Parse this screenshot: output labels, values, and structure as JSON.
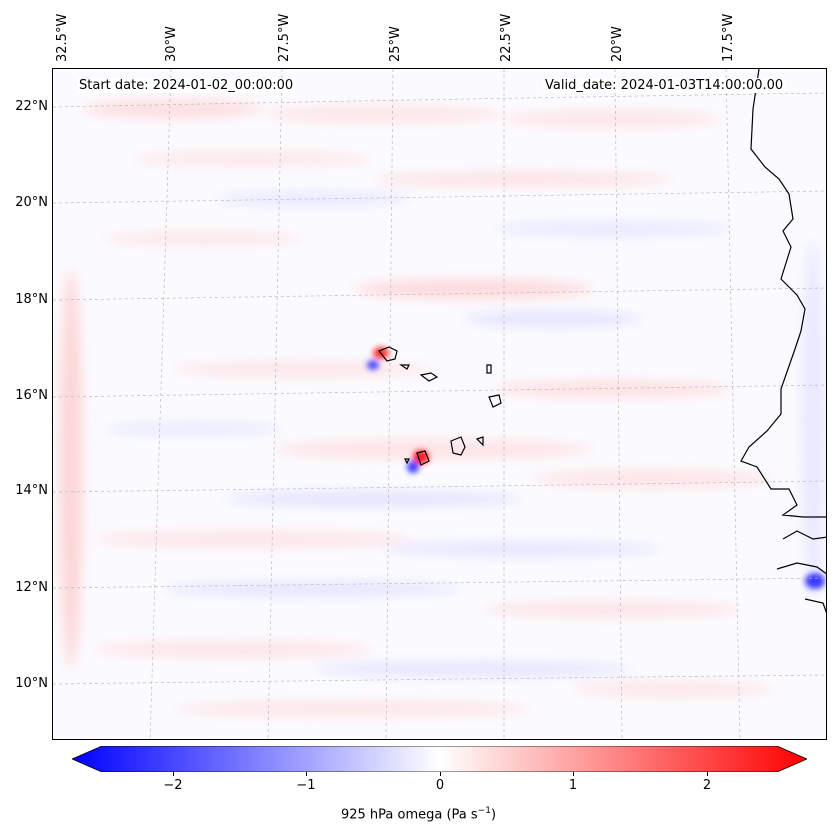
{
  "header": {
    "start_date": "Start date: 2024-01-02_00:00:00",
    "valid_date": "Valid_date: 2024-01-03T14:00:00.00"
  },
  "axes": {
    "lon_labels": [
      "32.5°W",
      "30°W",
      "27.5°W",
      "25°W",
      "22.5°W",
      "20°W",
      "17.5°W"
    ],
    "lat_labels": [
      "22°N",
      "20°N",
      "18°N",
      "16°N",
      "14°N",
      "12°N",
      "10°N"
    ]
  },
  "colorbar": {
    "label": "925 hPa omega (Pa s",
    "label_sup": "−1",
    "label_end": ")",
    "ticks": [
      "−2",
      "−1",
      "0",
      "1",
      "2"
    ],
    "tick_values": [
      -2,
      -1,
      0,
      1,
      2
    ],
    "range": [
      -2.5,
      2.5
    ],
    "colormap": "bwr",
    "extend": "both",
    "low_color": "#0000ff",
    "mid_color": "#ffffff",
    "high_color": "#ff0000"
  },
  "map": {
    "projection": "Lambert-like conic",
    "gridlines": "dashed gray",
    "coastline_color": "#000000",
    "extent_lon": [
      -33,
      -16
    ],
    "extent_lat": [
      9,
      23
    ],
    "features": [
      "Cape Verde islands",
      "West African coastline"
    ]
  }
}
